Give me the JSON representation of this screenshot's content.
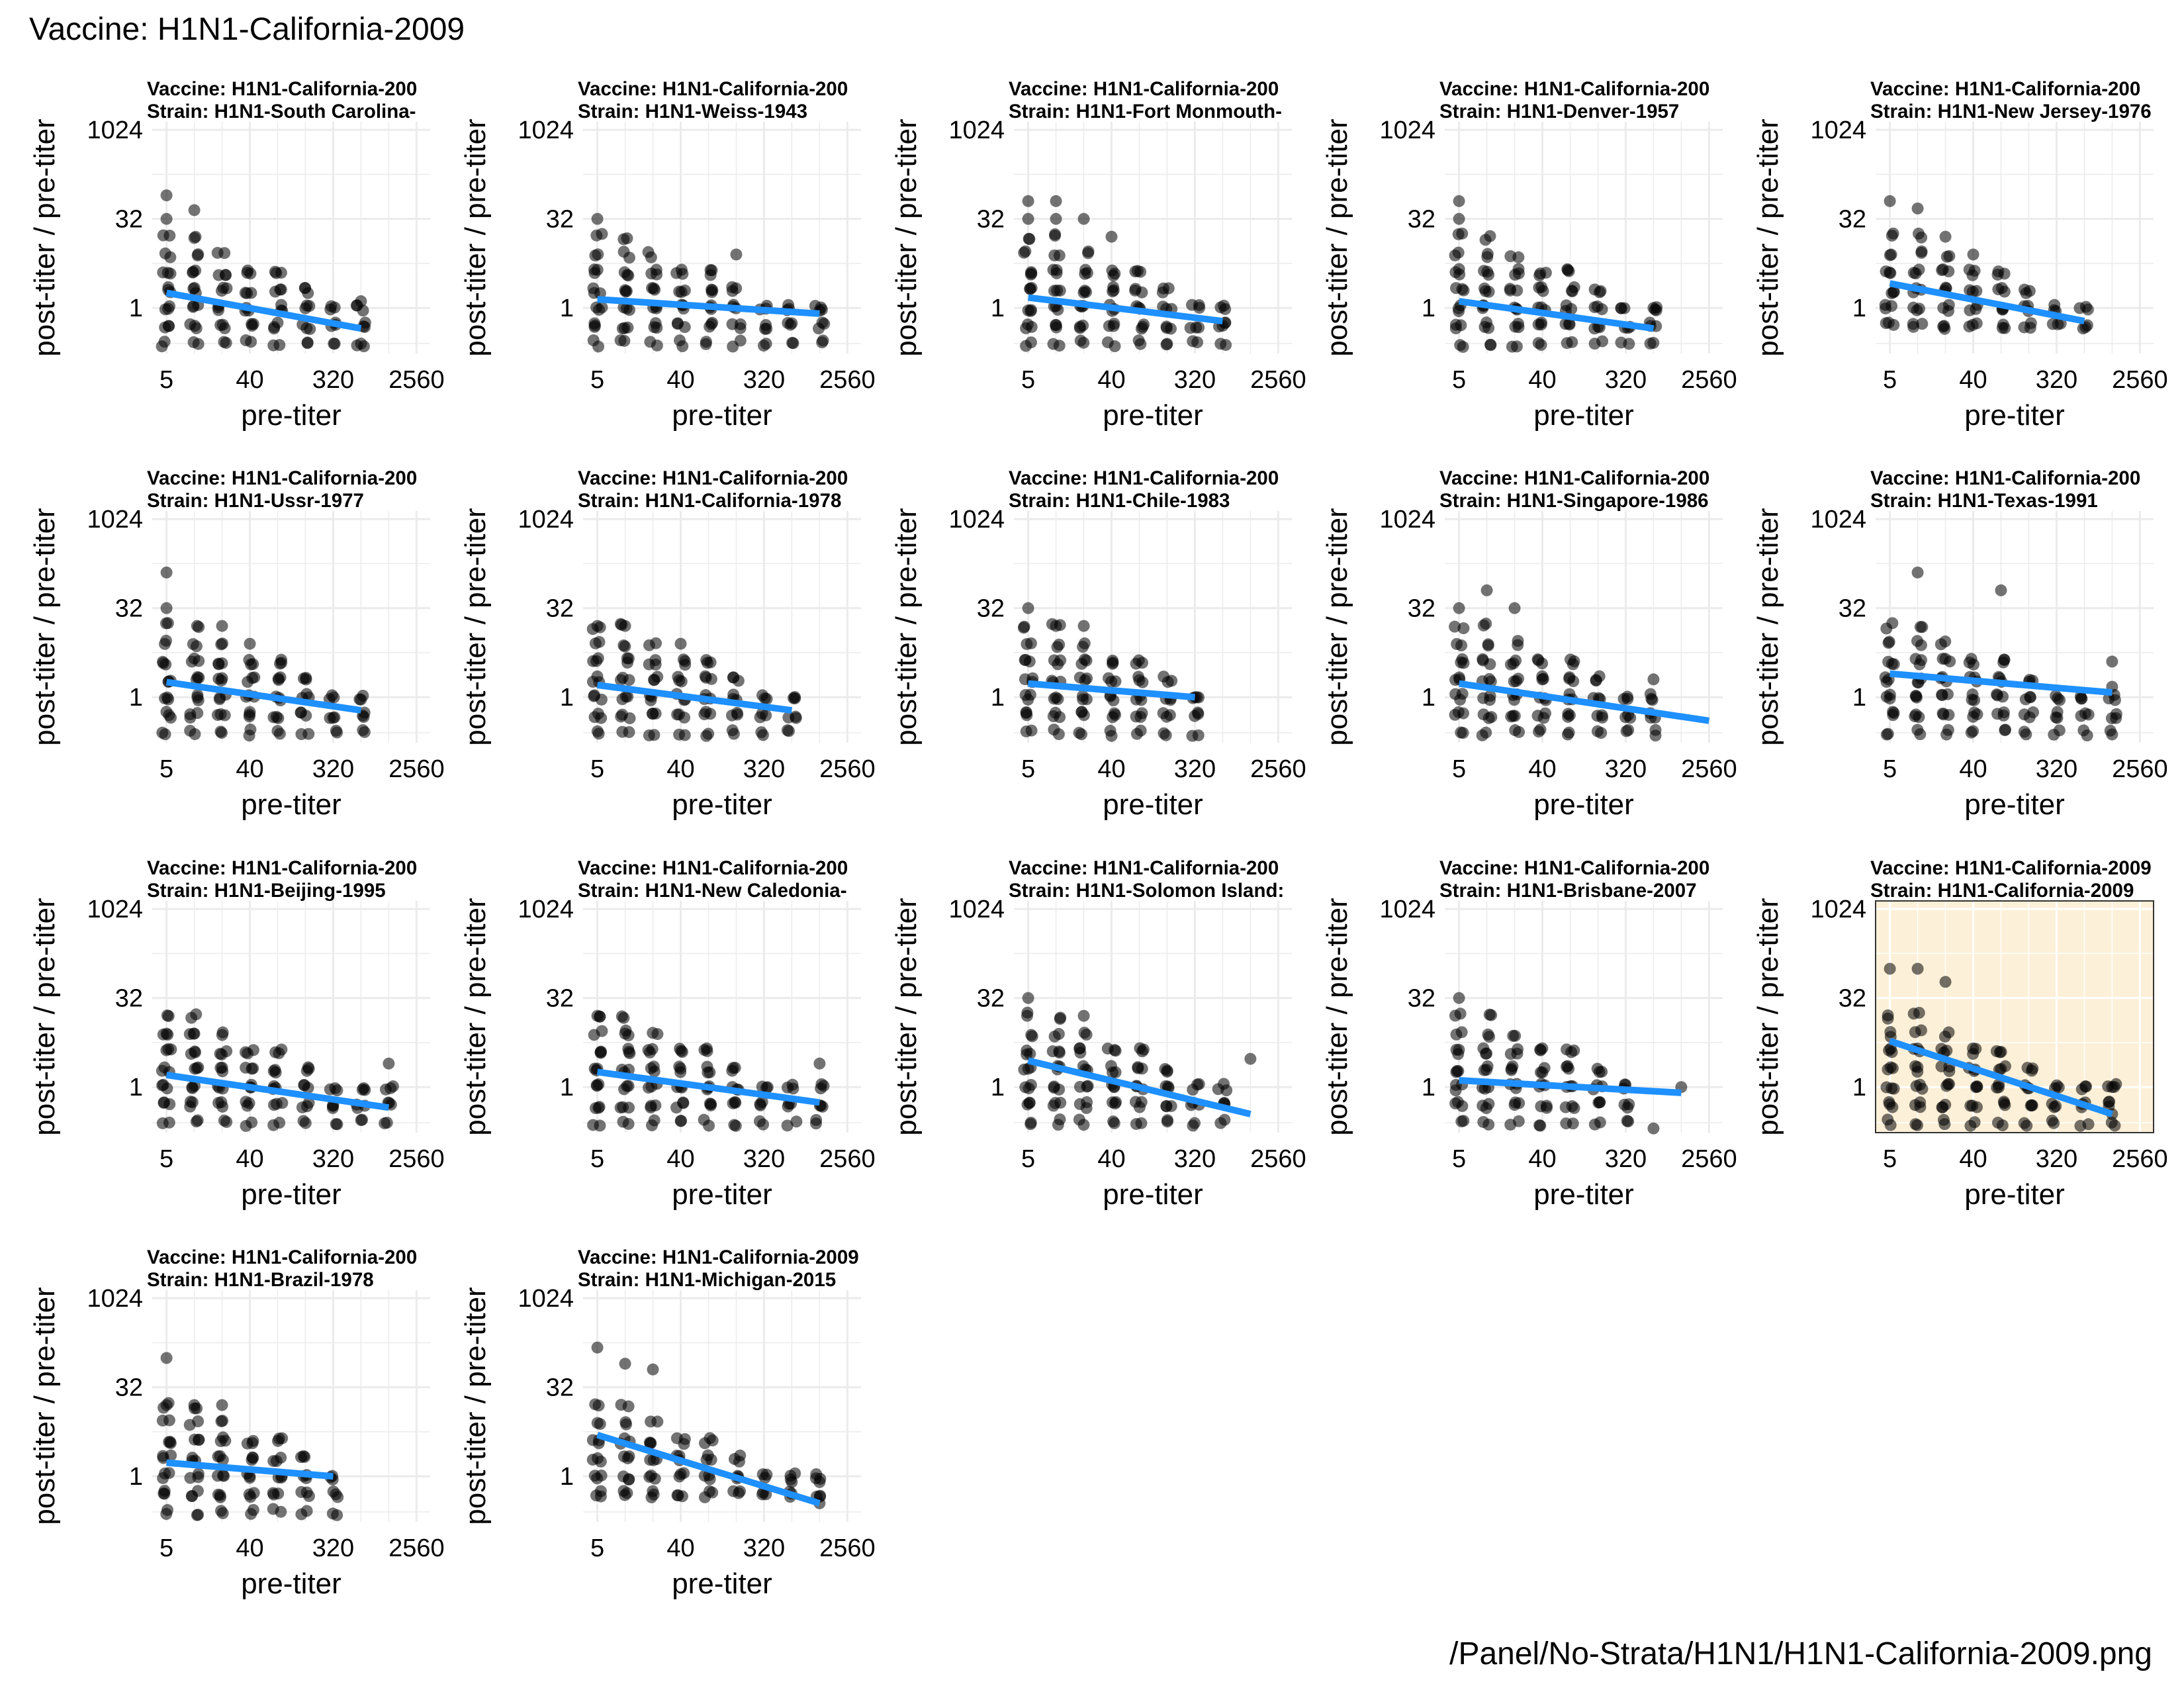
{
  "page": {
    "title": "Vaccine: H1N1-California-2009",
    "footer": "/Panel/No-Strata/H1N1/H1N1-California-2009.png"
  },
  "colors": {
    "points": "#000000",
    "trend": "#1e90ff",
    "grid": "#ebebeb",
    "highlight_bg": "#fdf0d8"
  },
  "chart_data": {
    "type": "scatter",
    "x_scale": "log2",
    "y_scale": "log2",
    "xlabel": "pre-titer",
    "ylabel": "post-titer / pre-titer",
    "xticks": [
      "5",
      "40",
      "320",
      "2560"
    ],
    "yticks": [
      "1024",
      "32",
      "1"
    ],
    "xlim": [
      3.5,
      3600
    ],
    "ylim": [
      0.17,
      1400
    ],
    "panels": [
      {
        "title1": "Vaccine: H1N1-California-200",
        "title2": "Strain: H1N1-South Carolina-",
        "xs": [
          5,
          10,
          20,
          40,
          80,
          160,
          320,
          640
        ],
        "trend": [
          [
            5,
            1.8
          ],
          [
            640,
            0.45
          ]
        ],
        "outliers": [
          [
            5,
            80
          ],
          [
            10,
            45
          ],
          [
            5,
            32
          ],
          [
            640,
            1.3
          ],
          [
            640,
            0.25
          ]
        ],
        "ymin": 0.25
      },
      {
        "title1": "Vaccine: H1N1-California-200",
        "title2": "Strain: H1N1-Weiss-1943",
        "xs": [
          5,
          10,
          20,
          40,
          80,
          160,
          320,
          640,
          1280
        ],
        "trend": [
          [
            5,
            1.4
          ],
          [
            1280,
            0.8
          ]
        ],
        "outliers": [
          [
            5,
            32
          ],
          [
            160,
            8
          ],
          [
            1280,
            0.9
          ]
        ],
        "ymin": 0.16
      },
      {
        "title1": "Vaccine: H1N1-California-200",
        "title2": "Strain: H1N1-Fort Monmouth-",
        "xs": [
          5,
          10,
          20,
          40,
          80,
          160,
          320,
          640
        ],
        "trend": [
          [
            5,
            1.5
          ],
          [
            640,
            0.6
          ]
        ],
        "outliers": [
          [
            5,
            64
          ],
          [
            10,
            64
          ],
          [
            5,
            32
          ],
          [
            10,
            32
          ],
          [
            20,
            32
          ],
          [
            40,
            16
          ],
          [
            640,
            0.5
          ]
        ],
        "ymin": 0.2
      },
      {
        "title1": "Vaccine: H1N1-California-200",
        "title2": "Strain: H1N1-Denver-1957",
        "xs": [
          5,
          10,
          20,
          40,
          80,
          160,
          320,
          640
        ],
        "trend": [
          [
            5,
            1.3
          ],
          [
            640,
            0.45
          ]
        ],
        "outliers": [
          [
            5,
            64
          ],
          [
            5,
            32
          ],
          [
            640,
            1
          ]
        ],
        "ymin": 0.2
      },
      {
        "title1": "Vaccine: H1N1-California-200",
        "title2": "Strain: H1N1-New Jersey-1976",
        "xs": [
          5,
          10,
          20,
          40,
          80,
          160,
          320,
          640
        ],
        "trend": [
          [
            5,
            2.6
          ],
          [
            640,
            0.6
          ]
        ],
        "outliers": [
          [
            5,
            64
          ],
          [
            10,
            48
          ],
          [
            20,
            16
          ],
          [
            40,
            8
          ]
        ],
        "ymin": 0.3
      },
      {
        "title1": "Vaccine: H1N1-California-200",
        "title2": "Strain: H1N1-Ussr-1977",
        "xs": [
          5,
          10,
          20,
          40,
          80,
          160,
          320,
          640
        ],
        "trend": [
          [
            5,
            1.8
          ],
          [
            640,
            0.6
          ]
        ],
        "outliers": [
          [
            5,
            128
          ],
          [
            5,
            32
          ],
          [
            20,
            16
          ],
          [
            40,
            8
          ]
        ],
        "ymin": 0.25
      },
      {
        "title1": "Vaccine: H1N1-California-200",
        "title2": "Strain: H1N1-California-1978",
        "xs": [
          5,
          10,
          20,
          40,
          80,
          160,
          320,
          640
        ],
        "trend": [
          [
            5,
            1.6
          ],
          [
            640,
            0.6
          ]
        ],
        "outliers": [
          [
            5,
            16
          ],
          [
            10,
            16
          ],
          [
            40,
            8
          ]
        ],
        "ymin": 0.25
      },
      {
        "title1": "Vaccine: H1N1-California-200",
        "title2": "Strain: H1N1-Chile-1983",
        "xs": [
          5,
          10,
          20,
          40,
          80,
          160,
          320
        ],
        "trend": [
          [
            5,
            1.7
          ],
          [
            320,
            1.0
          ]
        ],
        "outliers": [
          [
            5,
            32
          ],
          [
            10,
            16
          ],
          [
            20,
            16
          ],
          [
            320,
            1
          ]
        ],
        "ymin": 0.25
      },
      {
        "title1": "Vaccine: H1N1-California-200",
        "title2": "Strain: H1N1-Singapore-1986",
        "xs": [
          5,
          10,
          20,
          40,
          80,
          160,
          320,
          640
        ],
        "trend": [
          [
            5,
            1.7
          ],
          [
            2560,
            0.4
          ]
        ],
        "outliers": [
          [
            5,
            32
          ],
          [
            10,
            64
          ],
          [
            20,
            32
          ],
          [
            640,
            2
          ]
        ],
        "ymin": 0.25
      },
      {
        "title1": "Vaccine: H1N1-California-200",
        "title2": "Strain: H1N1-Texas-1991",
        "xs": [
          5,
          10,
          20,
          40,
          80,
          160,
          320,
          640,
          1280
        ],
        "trend": [
          [
            5,
            2.5
          ],
          [
            1280,
            1.2
          ]
        ],
        "outliers": [
          [
            10,
            128
          ],
          [
            80,
            64
          ],
          [
            1280,
            4
          ],
          [
            1280,
            1.5
          ]
        ],
        "ymin": 0.2
      },
      {
        "title1": "Vaccine: H1N1-California-200",
        "title2": "Strain: H1N1-Beijing-1995",
        "xs": [
          5,
          10,
          20,
          40,
          80,
          160,
          320,
          640,
          1280
        ],
        "trend": [
          [
            5,
            1.6
          ],
          [
            1280,
            0.45
          ]
        ],
        "outliers": [
          [
            5,
            8
          ],
          [
            10,
            8
          ],
          [
            1280,
            2.5
          ]
        ],
        "ymin": 0.2
      },
      {
        "title1": "Vaccine: H1N1-California-200",
        "title2": "Strain: H1N1-New Caledonia-",
        "xs": [
          5,
          10,
          20,
          40,
          80,
          160,
          320,
          640,
          1280
        ],
        "trend": [
          [
            5,
            1.8
          ],
          [
            1280,
            0.55
          ]
        ],
        "outliers": [
          [
            5,
            16
          ],
          [
            10,
            8
          ],
          [
            1280,
            2.5
          ]
        ],
        "ymin": 0.2
      },
      {
        "title1": "Vaccine: H1N1-California-200",
        "title2": "Strain: H1N1-Solomon Island:",
        "xs": [
          5,
          10,
          20,
          40,
          80,
          160,
          320,
          640
        ],
        "trend": [
          [
            5,
            2.8
          ],
          [
            1280,
            0.35
          ]
        ],
        "outliers": [
          [
            5,
            32
          ],
          [
            20,
            16
          ],
          [
            1280,
            3
          ]
        ],
        "ymin": 0.2
      },
      {
        "title1": "Vaccine: H1N1-California-200",
        "title2": "Strain: H1N1-Brisbane-2007",
        "xs": [
          5,
          10,
          20,
          40,
          80,
          160,
          320
        ],
        "trend": [
          [
            5,
            1.3
          ],
          [
            1280,
            0.8
          ]
        ],
        "outliers": [
          [
            5,
            32
          ],
          [
            640,
            0.2
          ],
          [
            1280,
            1
          ]
        ],
        "ymin": 0.25
      },
      {
        "title1": "Vaccine: H1N1-California-2009",
        "title2": "Strain: H1N1-California-2009",
        "xs": [
          5,
          10,
          20,
          40,
          80,
          160,
          320,
          640,
          1280
        ],
        "trend": [
          [
            5,
            6
          ],
          [
            1280,
            0.35
          ]
        ],
        "outliers": [
          [
            5,
            100
          ],
          [
            10,
            100
          ],
          [
            20,
            60
          ],
          [
            1280,
            1
          ],
          [
            1280,
            0.35
          ]
        ],
        "ymin": 0.2,
        "highlight": true
      },
      {
        "title1": "Vaccine: H1N1-California-200",
        "title2": "Strain: H1N1-Brazil-1978",
        "xs": [
          5,
          10,
          20,
          40,
          80,
          160,
          320
        ],
        "trend": [
          [
            5,
            1.7
          ],
          [
            320,
            1.0
          ]
        ],
        "outliers": [
          [
            5,
            100
          ],
          [
            5,
            16
          ],
          [
            10,
            16
          ],
          [
            20,
            16
          ]
        ],
        "ymin": 0.25
      },
      {
        "title1": "Vaccine: H1N1-California-2009",
        "title2": "Strain: H1N1-Michigan-2015",
        "xs": [
          5,
          10,
          20,
          40,
          80,
          160,
          320,
          640,
          1280
        ],
        "trend": [
          [
            5,
            5
          ],
          [
            1280,
            0.35
          ]
        ],
        "outliers": [
          [
            5,
            150
          ],
          [
            10,
            80
          ],
          [
            20,
            64
          ],
          [
            640,
            0.8
          ],
          [
            1280,
            0.8
          ],
          [
            1280,
            0.35
          ]
        ],
        "ymin": 0.3
      }
    ]
  }
}
